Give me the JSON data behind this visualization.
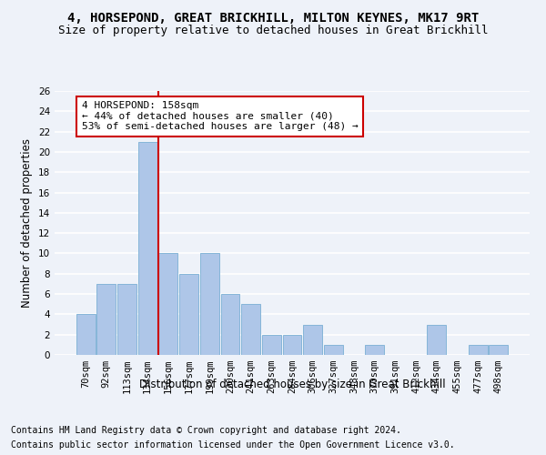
{
  "title1": "4, HORSEPOND, GREAT BRICKHILL, MILTON KEYNES, MK17 9RT",
  "title2": "Size of property relative to detached houses in Great Brickhill",
  "xlabel": "Distribution of detached houses by size in Great Brickhill",
  "ylabel": "Number of detached properties",
  "categories": [
    "70sqm",
    "92sqm",
    "113sqm",
    "134sqm",
    "156sqm",
    "177sqm",
    "199sqm",
    "220sqm",
    "241sqm",
    "263sqm",
    "284sqm",
    "306sqm",
    "327sqm",
    "348sqm",
    "370sqm",
    "391sqm",
    "412sqm",
    "434sqm",
    "455sqm",
    "477sqm",
    "498sqm"
  ],
  "values": [
    4,
    7,
    7,
    21,
    10,
    8,
    10,
    6,
    5,
    2,
    2,
    3,
    1,
    0,
    1,
    0,
    0,
    3,
    0,
    1,
    1
  ],
  "bar_color": "#aec6e8",
  "bar_edge_color": "#7aafd4",
  "vline_index": 3.5,
  "vline_color": "#cc0000",
  "annotation_text": "4 HORSEPOND: 158sqm\n← 44% of detached houses are smaller (40)\n53% of semi-detached houses are larger (48) →",
  "annotation_box_color": "#ffffff",
  "annotation_box_edge": "#cc0000",
  "ylim": [
    0,
    26
  ],
  "yticks": [
    0,
    2,
    4,
    6,
    8,
    10,
    12,
    14,
    16,
    18,
    20,
    22,
    24,
    26
  ],
  "footnote1": "Contains HM Land Registry data © Crown copyright and database right 2024.",
  "footnote2": "Contains public sector information licensed under the Open Government Licence v3.0.",
  "background_color": "#eef2f9",
  "grid_color": "#ffffff",
  "title_fontsize": 10,
  "subtitle_fontsize": 9,
  "axis_label_fontsize": 8.5,
  "tick_fontsize": 7.5,
  "annot_fontsize": 8,
  "footnote_fontsize": 7
}
